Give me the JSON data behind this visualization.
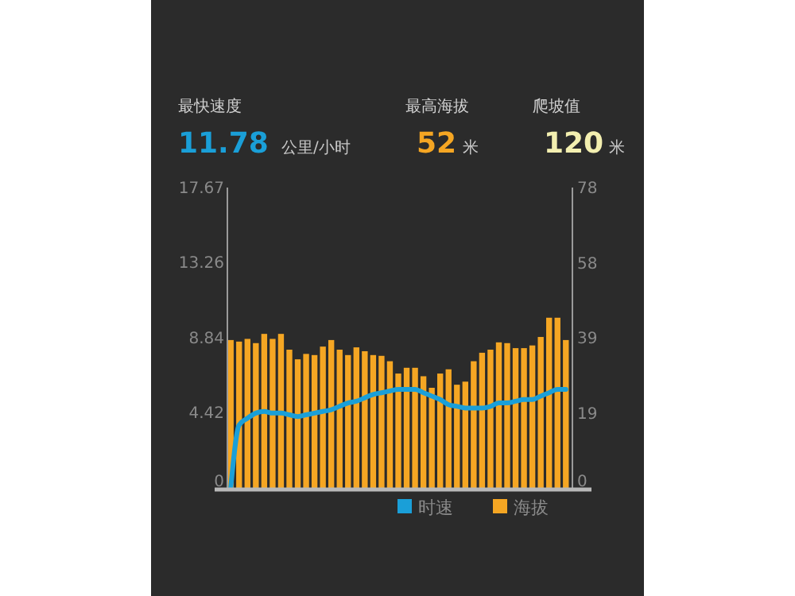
{
  "chart_data": {
    "type": "bar",
    "annotations": [
      "最快速度",
      "11.78",
      "公里/小时",
      "最高海拔",
      "52",
      "米",
      "爬坡值",
      "120",
      "米"
    ],
    "categories": [
      null,
      null,
      null,
      null,
      null,
      null,
      null,
      null,
      null,
      null,
      null,
      null,
      null,
      null,
      null,
      null,
      null,
      null,
      null,
      null,
      null,
      null,
      null,
      null,
      null,
      null,
      null,
      null,
      null,
      null,
      null,
      null,
      null,
      null,
      null,
      null,
      null,
      null,
      null,
      null,
      null
    ],
    "series": [
      {
        "name": "时速",
        "type": "line",
        "color": "#1a9fd8",
        "values": [
          0,
          3.7,
          4.1,
          4.4,
          4.5,
          4.4,
          4.4,
          4.3,
          4.2,
          4.3,
          4.4,
          4.5,
          4.6,
          4.8,
          5.0,
          5.1,
          5.3,
          5.5,
          5.6,
          5.7,
          5.8,
          5.8,
          5.8,
          5.6,
          5.4,
          5.2,
          4.9,
          4.8,
          4.7,
          4.7,
          4.7,
          4.8,
          5.0,
          5.0,
          5.1,
          5.2,
          5.2,
          5.4,
          5.6,
          5.8,
          5.8
        ]
      },
      {
        "name": "海拔",
        "axis": "y2",
        "color": "#f5a623",
        "values": [
          38.4,
          38,
          38.7,
          37.6,
          40,
          38.7,
          40,
          35.9,
          33.4,
          34.8,
          34.5,
          36.7,
          38.4,
          35.9,
          34.5,
          36.5,
          35.5,
          34.5,
          34.3,
          32.9,
          29.7,
          31.2,
          31.2,
          29,
          26,
          29.7,
          30.8,
          26.8,
          27.6,
          32.9,
          35.1,
          35.9,
          37.8,
          37.6,
          36.3,
          36.3,
          37,
          39.2,
          44.2,
          44.2,
          38.4
        ]
      }
    ],
    "ylim": [
      0,
      17.67
    ],
    "yticks": [
      0,
      4.42,
      8.84,
      13.26,
      17.67
    ],
    "y2lim": [
      0,
      78
    ],
    "y2ticks": [
      0,
      {
        "value": 19.5,
        "label": "19"
      },
      39,
      {
        "value": 58.5,
        "label": "58"
      },
      78
    ],
    "legend": "bottom right",
    "line_style": "solid",
    "marker": "none"
  }
}
